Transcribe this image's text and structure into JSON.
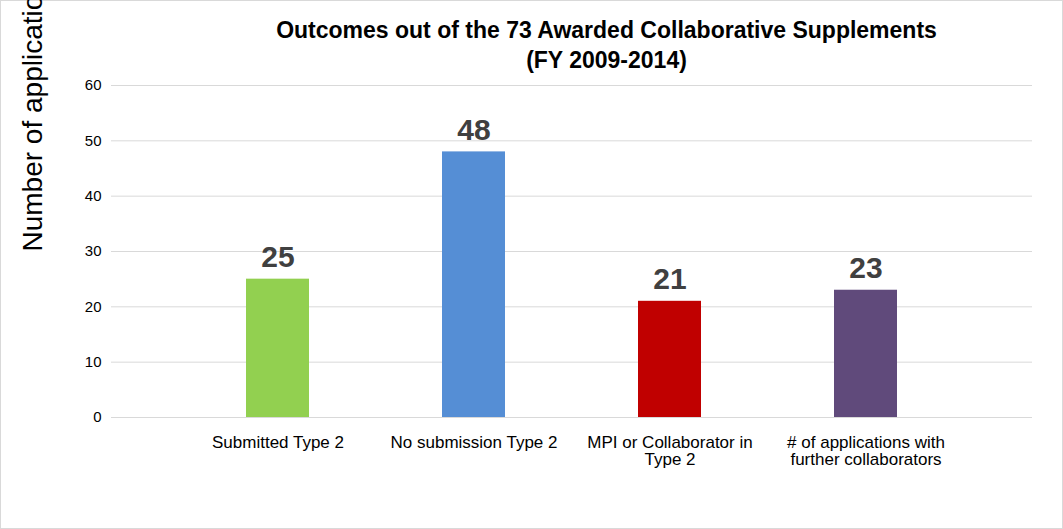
{
  "chart_data": {
    "type": "bar",
    "title": "Outcomes out of the 73 Awarded Collaborative Supplements\n(FY 2009-2014)",
    "y_label": "Number of applications",
    "categories": [
      "Submitted Type 2",
      "No submission Type 2",
      "MPI or Collaborator in Type 2",
      "# of applications with further collaborators"
    ],
    "values": [
      25,
      48,
      21,
      23
    ],
    "colors": [
      "#92d050",
      "#558ed5",
      "#c00000",
      "#604a7b"
    ],
    "ylim": [
      0,
      60
    ],
    "yticks": [
      0,
      10,
      20,
      30,
      40,
      50,
      60
    ],
    "grid": true,
    "data_labels": true
  }
}
